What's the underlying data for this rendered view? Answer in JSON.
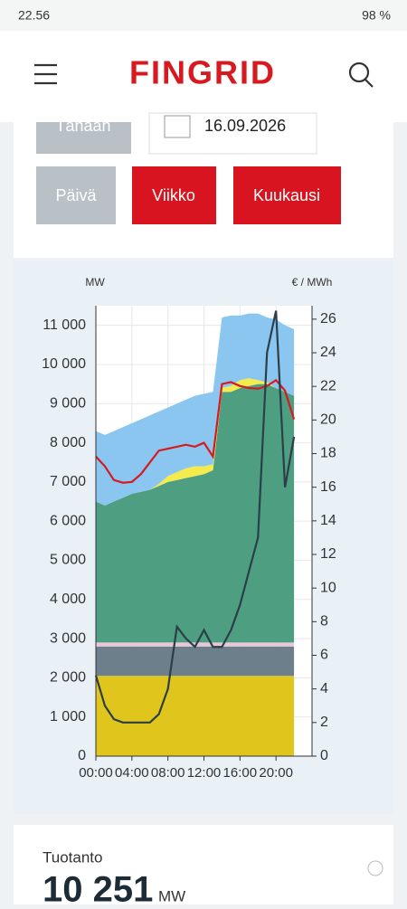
{
  "status_bar": {
    "time": "22.56",
    "battery": "98 %"
  },
  "header": {
    "logo": "FINGRID"
  },
  "controls": {
    "today": "Tänään",
    "date": "16.09.2026",
    "ranges": [
      "Päivä",
      "Viikko",
      "Kuukausi"
    ]
  },
  "chart_data": {
    "type": "area",
    "y_label": "MW",
    "y2_label": "€ / MWh",
    "x": [
      0,
      1,
      2,
      3,
      4,
      5,
      6,
      7,
      8,
      9,
      10,
      11,
      12,
      13,
      14,
      15,
      16,
      17,
      18,
      19,
      20,
      21,
      22
    ],
    "xlim": [
      0,
      24
    ],
    "xticks": [
      {
        "value": 0,
        "label": "00:00"
      },
      {
        "value": 4,
        "label": "04:00"
      },
      {
        "value": 8,
        "label": "08:00"
      },
      {
        "value": 12,
        "label": "12:00"
      },
      {
        "value": 16,
        "label": "16:00"
      },
      {
        "value": 20,
        "label": "20:00"
      }
    ],
    "ylim": [
      0,
      11500
    ],
    "yticks": [
      0,
      {
        "value": 1000,
        "label": "1 000"
      },
      {
        "value": 2000,
        "label": "2 000"
      },
      {
        "value": 3000,
        "label": "3 000"
      },
      {
        "value": 4000,
        "label": "4 000"
      },
      {
        "value": 5000,
        "label": "5 000"
      },
      {
        "value": 6000,
        "label": "6 000"
      },
      {
        "value": 7000,
        "label": "7 000"
      },
      {
        "value": 8000,
        "label": "8 000"
      },
      {
        "value": 9000,
        "label": "9 000"
      },
      {
        "value": 10000,
        "label": "10 000"
      },
      {
        "value": 11000,
        "label": "11 000"
      }
    ],
    "y2lim": [
      0,
      26.8
    ],
    "y2ticks": [
      0,
      2,
      4,
      6,
      8,
      10,
      12,
      14,
      16,
      18,
      20,
      22,
      24,
      26
    ],
    "grid": true,
    "series": [
      {
        "color": "#e0c61c",
        "values": [
          2050,
          2050,
          2050,
          2050,
          2050,
          2050,
          2050,
          2050,
          2050,
          2050,
          2050,
          2050,
          2050,
          2050,
          2050,
          2050,
          2050,
          2050,
          2050,
          2050,
          2050,
          2050,
          2050
        ]
      },
      {
        "color": "#6d7f8a",
        "values": [
          750,
          750,
          750,
          750,
          750,
          750,
          750,
          750,
          750,
          750,
          750,
          750,
          750,
          750,
          750,
          750,
          750,
          750,
          750,
          750,
          750,
          750,
          750
        ]
      },
      {
        "color": "#e8c8d8",
        "values": [
          100,
          100,
          100,
          100,
          100,
          100,
          100,
          100,
          100,
          100,
          100,
          100,
          100,
          100,
          100,
          100,
          100,
          100,
          100,
          100,
          100,
          100,
          100
        ]
      },
      {
        "color": "#4e9f82",
        "values": [
          3600,
          3500,
          3600,
          3700,
          3800,
          3850,
          3900,
          4000,
          4100,
          4150,
          4200,
          4250,
          4300,
          4400,
          6400,
          6400,
          6500,
          6550,
          6600,
          6600,
          6500,
          6400,
          6300
        ]
      },
      {
        "color": "#f4ec4c",
        "values": [
          0,
          0,
          0,
          0,
          0,
          0,
          0,
          50,
          150,
          200,
          250,
          250,
          200,
          150,
          100,
          150,
          200,
          200,
          100,
          50,
          0,
          0,
          0
        ]
      },
      {
        "color": "#8ac6f0",
        "values": [
          1800,
          1800,
          1800,
          1800,
          1800,
          1850,
          1900,
          1850,
          1750,
          1750,
          1750,
          1800,
          1850,
          1850,
          1800,
          1800,
          1650,
          1650,
          1700,
          1650,
          1750,
          1700,
          1700
        ]
      },
      {
        "type": "line",
        "color": "#d71920",
        "values": [
          7650,
          7400,
          7050,
          6980,
          7000,
          7200,
          7500,
          7800,
          7850,
          7900,
          7950,
          7900,
          8000,
          7650,
          9500,
          9550,
          9450,
          9400,
          9380,
          9450,
          9600,
          9330,
          8600
        ]
      },
      {
        "type": "line",
        "axis": "y2",
        "color": "#2c3e48",
        "values": [
          4.8,
          3,
          2.2,
          2,
          2,
          2,
          2,
          2.5,
          4,
          7.7,
          7,
          6.5,
          7.5,
          6.5,
          6.5,
          7.5,
          9,
          11,
          13,
          24,
          26.5,
          16,
          19
        ]
      }
    ]
  },
  "summary": {
    "label": "Tuotanto",
    "value": "10 251",
    "unit": "MW"
  }
}
